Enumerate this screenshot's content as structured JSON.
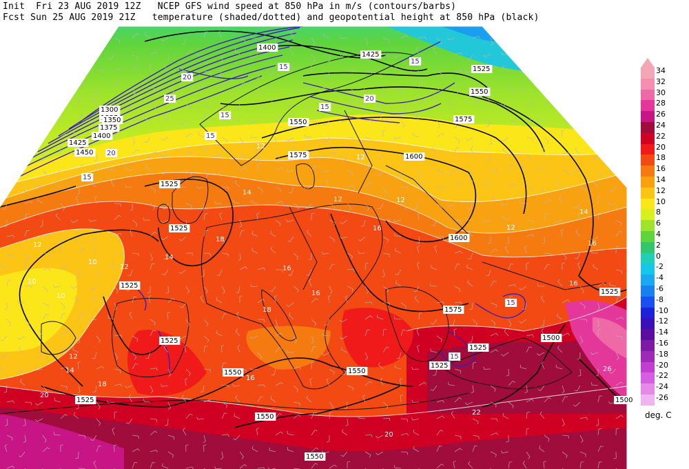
{
  "header": {
    "init": "Init  Fri 23 AUG 2019 12Z",
    "fcst": "Fcst Sun 25 AUG 2019 21Z",
    "title1": "NCEP GFS wind speed at 850 hPa in m/s (contours/barbs)",
    "title2": "temperature (shaded/dotted) and geopotential height at 850 hPa (black)"
  },
  "colorbar": {
    "unit": "deg. C",
    "levels": [
      {
        "label": "34",
        "color": "#f2a6b6"
      },
      {
        "label": "32",
        "color": "#f48fb1"
      },
      {
        "label": "30",
        "color": "#ee6aa7"
      },
      {
        "label": "28",
        "color": "#e4379a"
      },
      {
        "label": "26",
        "color": "#c71585"
      },
      {
        "label": "24",
        "color": "#a00c3c"
      },
      {
        "label": "22",
        "color": "#d00022"
      },
      {
        "label": "20",
        "color": "#f01a1a"
      },
      {
        "label": "18",
        "color": "#f24a12"
      },
      {
        "label": "16",
        "color": "#f57a10"
      },
      {
        "label": "14",
        "color": "#f9a211"
      },
      {
        "label": "12",
        "color": "#fcc515"
      },
      {
        "label": "10",
        "color": "#fbe61a"
      },
      {
        "label": "8",
        "color": "#d9f01f"
      },
      {
        "label": "6",
        "color": "#9fe32b"
      },
      {
        "label": "4",
        "color": "#5fd43d"
      },
      {
        "label": "2",
        "color": "#34c66e"
      },
      {
        "label": "0",
        "color": "#20d0b6"
      },
      {
        "label": "-2",
        "color": "#16c8e8"
      },
      {
        "label": "-4",
        "color": "#1aa8f0"
      },
      {
        "label": "-6",
        "color": "#1a7ff0"
      },
      {
        "label": "-8",
        "color": "#1a4ff0"
      },
      {
        "label": "-10",
        "color": "#1c22d8"
      },
      {
        "label": "-12",
        "color": "#3a10b8"
      },
      {
        "label": "-14",
        "color": "#5a0d9e"
      },
      {
        "label": "-16",
        "color": "#7d1ba4"
      },
      {
        "label": "-18",
        "color": "#a02ab8"
      },
      {
        "label": "-20",
        "color": "#c03ed0"
      },
      {
        "label": "-22",
        "color": "#d65ee0"
      },
      {
        "label": "-24",
        "color": "#e58ae8"
      },
      {
        "label": "-26",
        "color": "#f0b4f0"
      }
    ]
  },
  "map": {
    "height_labels": [
      {
        "text": "1400",
        "x": 1375,
        "y": 72
      },
      {
        "text": "1425",
        "x": 1525,
        "y": 82
      },
      {
        "text": "1525",
        "x": 1686,
        "y": 103
      },
      {
        "text": "1550",
        "x": 1683,
        "y": 136
      },
      {
        "text": "1575",
        "x": 1660,
        "y": 176
      },
      {
        "text": "1550",
        "x": 1420,
        "y": 180
      },
      {
        "text": "1575",
        "x": 1420,
        "y": 228
      },
      {
        "text": "1600",
        "x": 1588,
        "y": 230
      },
      {
        "text": "1525",
        "x": 1233,
        "y": 270
      },
      {
        "text": "1525",
        "x": 1247,
        "y": 334
      },
      {
        "text": "1600",
        "x": 1653,
        "y": 348
      },
      {
        "text": "1525",
        "x": 1175,
        "y": 417
      },
      {
        "text": "1525",
        "x": 1872,
        "y": 426
      },
      {
        "text": "1575",
        "x": 1645,
        "y": 452
      },
      {
        "text": "1525",
        "x": 1233,
        "y": 497
      },
      {
        "text": "1500",
        "x": 1787,
        "y": 493
      },
      {
        "text": "1525",
        "x": 1681,
        "y": 507
      },
      {
        "text": "1525",
        "x": 1625,
        "y": 533
      },
      {
        "text": "1550",
        "x": 1325,
        "y": 543
      },
      {
        "text": "1550",
        "x": 1505,
        "y": 541
      },
      {
        "text": "1525",
        "x": 1111,
        "y": 583
      },
      {
        "text": "1550",
        "x": 1372,
        "y": 607
      },
      {
        "text": "1500",
        "x": 1893,
        "y": 583
      },
      {
        "text": "1550",
        "x": 1444,
        "y": 665
      },
      {
        "text": "1300",
        "x": 1146,
        "y": 162
      },
      {
        "text": "1325",
        "x": 1146,
        "y": 174
      },
      {
        "text": "1350",
        "x": 1150,
        "y": 177
      },
      {
        "text": "1375",
        "x": 1145,
        "y": 188
      },
      {
        "text": "1400",
        "x": 1135,
        "y": 200
      },
      {
        "text": "1425",
        "x": 1100,
        "y": 210
      },
      {
        "text": "1450",
        "x": 1110,
        "y": 224
      }
    ],
    "wind_labels": [
      {
        "text": "15",
        "x": 1405,
        "y": 100
      },
      {
        "text": "15",
        "x": 1596,
        "y": 92
      },
      {
        "text": "20",
        "x": 1265,
        "y": 115
      },
      {
        "text": "25",
        "x": 1240,
        "y": 146
      },
      {
        "text": "15",
        "x": 1320,
        "y": 170
      },
      {
        "text": "15",
        "x": 1299,
        "y": 200
      },
      {
        "text": "20",
        "x": 1155,
        "y": 225
      },
      {
        "text": "15",
        "x": 1120,
        "y": 260
      },
      {
        "text": "15",
        "x": 1465,
        "y": 158
      },
      {
        "text": "20",
        "x": 1530,
        "y": 146
      },
      {
        "text": "15",
        "x": 1735,
        "y": 442
      },
      {
        "text": "15",
        "x": 1653,
        "y": 520
      }
    ],
    "temp_labels": [
      {
        "text": "12",
        "x": 1372,
        "y": 215
      },
      {
        "text": "12",
        "x": 1517,
        "y": 231
      },
      {
        "text": "14",
        "x": 1352,
        "y": 282
      },
      {
        "text": "12",
        "x": 1484,
        "y": 292
      },
      {
        "text": "12",
        "x": 1575,
        "y": 293
      },
      {
        "text": "12",
        "x": 1735,
        "y": 333
      },
      {
        "text": "14",
        "x": 1841,
        "y": 310
      },
      {
        "text": "18",
        "x": 1313,
        "y": 350
      },
      {
        "text": "12",
        "x": 1048,
        "y": 358
      },
      {
        "text": "10",
        "x": 1128,
        "y": 383
      },
      {
        "text": "12",
        "x": 1174,
        "y": 390
      },
      {
        "text": "14",
        "x": 1239,
        "y": 376
      },
      {
        "text": "16",
        "x": 1410,
        "y": 392
      },
      {
        "text": "16",
        "x": 1541,
        "y": 334
      },
      {
        "text": "16",
        "x": 1853,
        "y": 356
      },
      {
        "text": "16",
        "x": 1826,
        "y": 414
      },
      {
        "text": "10",
        "x": 1040,
        "y": 411
      },
      {
        "text": "10",
        "x": 1082,
        "y": 432
      },
      {
        "text": "18",
        "x": 1381,
        "y": 452
      },
      {
        "text": "16",
        "x": 1452,
        "y": 428
      },
      {
        "text": "12",
        "x": 1100,
        "y": 520
      },
      {
        "text": "14",
        "x": 1095,
        "y": 540
      },
      {
        "text": "18",
        "x": 1142,
        "y": 560
      },
      {
        "text": "20",
        "x": 1058,
        "y": 576
      },
      {
        "text": "16",
        "x": 1357,
        "y": 551
      },
      {
        "text": "20",
        "x": 1558,
        "y": 633
      },
      {
        "text": "22",
        "x": 1685,
        "y": 601
      },
      {
        "text": "26",
        "x": 1875,
        "y": 538
      }
    ],
    "colors": {
      "height": "#000000",
      "wind": "#3b1fb5",
      "coast": "#111111",
      "temp_line": "#ffffff",
      "barb": "#b9b9b9"
    }
  }
}
